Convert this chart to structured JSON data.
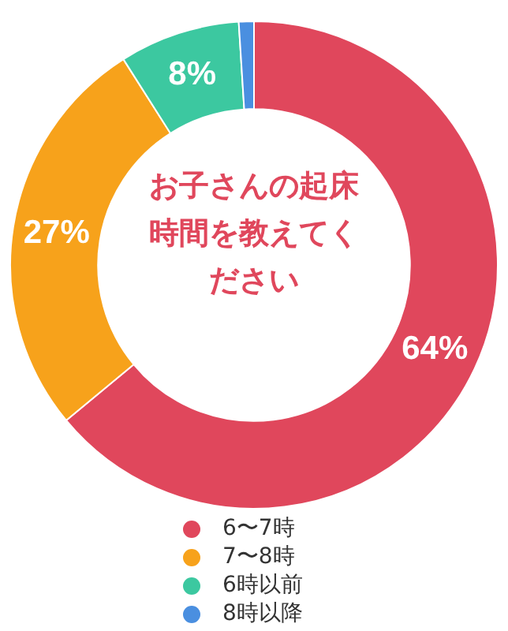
{
  "chart_data": {
    "type": "donut",
    "title": "お子さんの起床時間を教えてください",
    "categories": [
      "6〜7時",
      "7〜8時",
      "6時以前",
      "8時以降"
    ],
    "values": [
      64,
      27,
      8,
      1
    ],
    "colors": [
      "#e0475c",
      "#f7a21b",
      "#3cc8a0",
      "#4a8fe0"
    ],
    "value_labels": [
      "64%",
      "27%",
      "8%",
      null
    ],
    "legend": "bottom"
  }
}
